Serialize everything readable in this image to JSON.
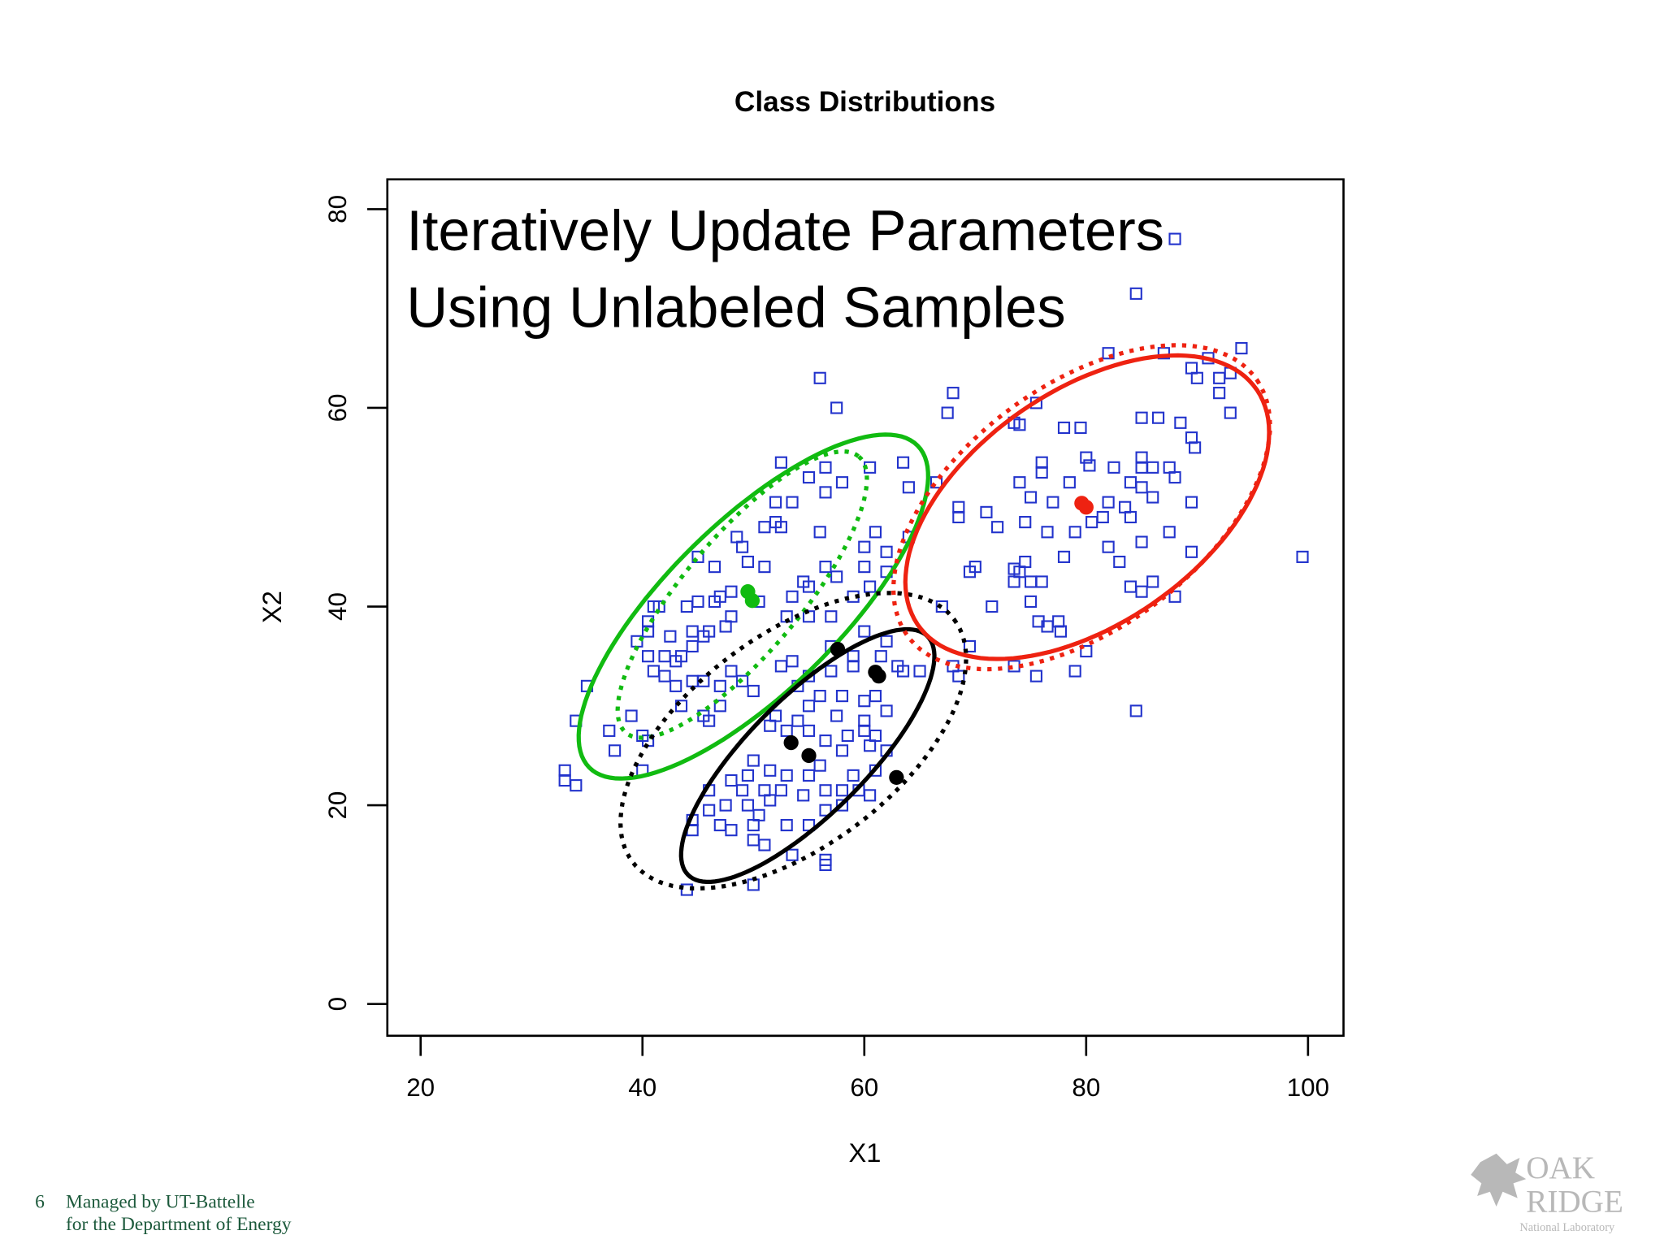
{
  "chart_data": {
    "type": "scatter",
    "title": "Class Distributions",
    "annotation_lines": [
      "Iteratively Update Parameters",
      "Using Unlabeled Samples"
    ],
    "xlabel": "X1",
    "ylabel": "X2",
    "xlim": [
      17,
      103.2
    ],
    "ylim": [
      -3.2,
      83
    ],
    "xticks": [
      20,
      40,
      60,
      80,
      100
    ],
    "yticks": [
      0,
      20,
      40,
      60,
      80
    ],
    "series": [
      {
        "color": "#2233cc",
        "x": [
          88,
          84.5,
          94,
          87,
          91,
          89.5,
          90,
          92,
          93,
          92,
          93,
          85,
          86.5,
          88.5,
          89.5,
          89.8,
          82,
          56,
          57.5,
          68,
          67.5,
          75.5,
          73.5,
          74,
          78,
          79.5,
          80,
          80.3,
          76,
          76,
          82.5,
          85,
          86,
          87.5,
          85,
          88,
          84,
          85,
          86,
          82,
          83.5,
          81.5,
          84,
          87.5,
          89.5,
          89.5,
          85,
          82,
          83,
          86,
          84,
          85,
          88,
          78.5,
          77,
          75,
          74,
          74.5,
          76.5,
          79,
          80.5,
          78,
          74.5,
          74,
          73.5,
          75,
          76,
          70,
          71.5,
          73.5,
          75,
          67,
          68.5,
          68.5,
          71,
          72,
          66.5,
          69.5,
          76.5,
          77.5,
          77.7,
          75.7,
          80,
          69.5,
          73.5,
          68,
          68.5,
          75.5,
          79,
          84.5,
          99.5,
          55,
          52.5,
          60.5,
          63.5,
          56.5,
          58,
          64,
          52,
          53.5,
          56.5,
          51,
          52,
          52.5,
          56,
          61,
          64,
          60,
          62,
          48.5,
          49,
          46.5,
          45,
          49.5,
          51,
          56.5,
          54.5,
          57.5,
          60,
          62,
          60.5,
          59,
          55,
          53.5,
          50.5,
          48,
          47,
          46.5,
          45,
          44,
          48,
          47.5,
          53,
          55,
          57,
          41,
          41.5,
          40.5,
          40.5,
          42.5,
          44.5,
          46,
          45.5,
          44.5,
          43.5,
          43,
          42,
          40.5,
          41,
          39.5,
          42,
          43,
          44.5,
          45.5,
          48,
          49,
          47,
          50,
          52.5,
          54,
          35,
          39,
          43.5,
          45.5,
          47,
          46,
          37,
          40,
          40.5,
          34,
          37.5,
          40,
          33,
          33,
          34,
          57,
          59,
          60,
          62,
          61.5,
          63,
          63.5,
          65,
          59,
          57,
          55,
          53.5,
          56,
          55,
          58,
          60,
          61,
          62,
          60,
          57.5,
          54,
          52,
          51.5,
          53,
          55,
          56.5,
          58.5,
          60,
          61,
          60.5,
          62,
          58,
          56,
          55,
          53,
          51.5,
          50,
          49.5,
          51,
          52.5,
          54.5,
          56.5,
          58,
          59.5,
          60.5,
          61,
          59,
          48,
          49,
          47.5,
          46,
          46,
          49.5,
          51.5,
          50.5,
          50,
          48,
          47,
          44.5,
          44.5,
          50,
          51,
          53,
          55,
          56.5,
          58,
          56.5,
          56.5,
          53.5,
          50,
          44
        ],
        "y": [
          77,
          71.5,
          66,
          65.5,
          65,
          64,
          63,
          63,
          63.5,
          61.5,
          59.5,
          59,
          59,
          58.5,
          57,
          56,
          65.5,
          63,
          60,
          61.5,
          59.5,
          60.5,
          58.5,
          58.3,
          58,
          58,
          55,
          54.2,
          54.5,
          53.5,
          54,
          54,
          54,
          54,
          55,
          53,
          52.5,
          52,
          51,
          50.5,
          50,
          49,
          49,
          47.5,
          45.5,
          50.5,
          46.5,
          46,
          44.5,
          42.5,
          42,
          41.5,
          41,
          52.5,
          50.5,
          51,
          52.5,
          48.5,
          47.5,
          47.5,
          48.5,
          45,
          44.5,
          43.5,
          42.5,
          42.5,
          42.5,
          44,
          40,
          43.8,
          40.5,
          40,
          49,
          50,
          49.5,
          48,
          52.5,
          43.5,
          38,
          38.5,
          37.5,
          38.5,
          35.5,
          36,
          34,
          34,
          33,
          33,
          33.5,
          29.5,
          45,
          53,
          54.5,
          54,
          54.5,
          54,
          52.5,
          52,
          50.5,
          50.5,
          51.5,
          48,
          48.5,
          48,
          47.5,
          47.5,
          47,
          46,
          45.5,
          47,
          46,
          44,
          45,
          44.5,
          44,
          44,
          42.5,
          43,
          44,
          43.5,
          42,
          41,
          42,
          41,
          40.5,
          41.5,
          41,
          40.5,
          40.5,
          40,
          39,
          38,
          39,
          39,
          39,
          40,
          40,
          38.5,
          37.5,
          37,
          37.5,
          37.5,
          37,
          36,
          35,
          34.5,
          35,
          35,
          33.5,
          36.5,
          33,
          32,
          32.5,
          32.5,
          33.5,
          32.5,
          32,
          31.5,
          34,
          32,
          32,
          29,
          30,
          29,
          30,
          28.5,
          27.5,
          27,
          26.5,
          28.5,
          25.5,
          23.5,
          23.5,
          22.5,
          22,
          36,
          35,
          37.5,
          36.5,
          35,
          34,
          33.5,
          33.5,
          34,
          33.5,
          33,
          34.5,
          31,
          30,
          31,
          30.5,
          31,
          29.5,
          28.5,
          29,
          28.5,
          29,
          28,
          27.5,
          27.5,
          26.5,
          27,
          27.5,
          27,
          26,
          25.5,
          25.5,
          24,
          23,
          23,
          23.5,
          24.5,
          23,
          21.5,
          21.5,
          21,
          21.5,
          21.5,
          21.5,
          21,
          23.5,
          23,
          22.5,
          21.5,
          20,
          19.5,
          21.5,
          20,
          20.5,
          19,
          18,
          17.5,
          18,
          18.5,
          17.5,
          16.5,
          16,
          18,
          18,
          19.5,
          20,
          14.5,
          14,
          15,
          12,
          11.5
        ]
      }
    ],
    "ellipses": [
      {
        "color": "#11bb11",
        "dashed": false,
        "center": [
          50,
          40
        ],
        "major": [
          14.8,
          16.2
        ],
        "minor": [
          5.4,
          -6.1
        ]
      },
      {
        "color": "#11bb11",
        "dashed": true,
        "center": [
          49,
          41.2
        ],
        "major": [
          10.5,
          13.9
        ],
        "minor": [
          4,
          -3.8
        ]
      },
      {
        "color": "#000000",
        "dashed": false,
        "center": [
          54.9,
          25
        ],
        "major": [
          10.8,
          12
        ],
        "minor": [
          3.7,
          -4.2
        ]
      },
      {
        "color": "#000000",
        "dashed": true,
        "center": [
          53.6,
          26.5
        ],
        "major": [
          14.5,
          12.2
        ],
        "minor": [
          5.7,
          -8.5
        ]
      },
      {
        "color": "#ee2211",
        "dashed": false,
        "center": [
          80.1,
          50
        ],
        "major": [
          15.3,
          11.8
        ],
        "minor": [
          5.9,
          -9.7
        ]
      },
      {
        "color": "#ee2211",
        "dashed": true,
        "center": [
          79.6,
          50
        ],
        "major": [
          15.8,
          12.8
        ],
        "minor": [
          6.2,
          -10.1
        ]
      }
    ],
    "means": {
      "x": [
        49.5,
        49.9,
        79.6,
        80,
        57.6,
        61,
        62.9,
        53.4,
        55,
        61.3
      ],
      "y": [
        41.5,
        40.6,
        50.4,
        50,
        35.7,
        33.4,
        22.8,
        26.3,
        25,
        33
      ],
      "colors": [
        "#11bb11",
        "#11bb11",
        "#ee2211",
        "#ee2211",
        "#000000",
        "#000000",
        "#000000",
        "#000000",
        "#000000",
        "#000000"
      ]
    }
  },
  "footer": {
    "page": "6",
    "line1": "Managed by UT-Battelle",
    "line2": "for the Department of Energy"
  },
  "logo": {
    "line1": "OAK",
    "line2": "RIDGE",
    "line3": "National Laboratory"
  }
}
